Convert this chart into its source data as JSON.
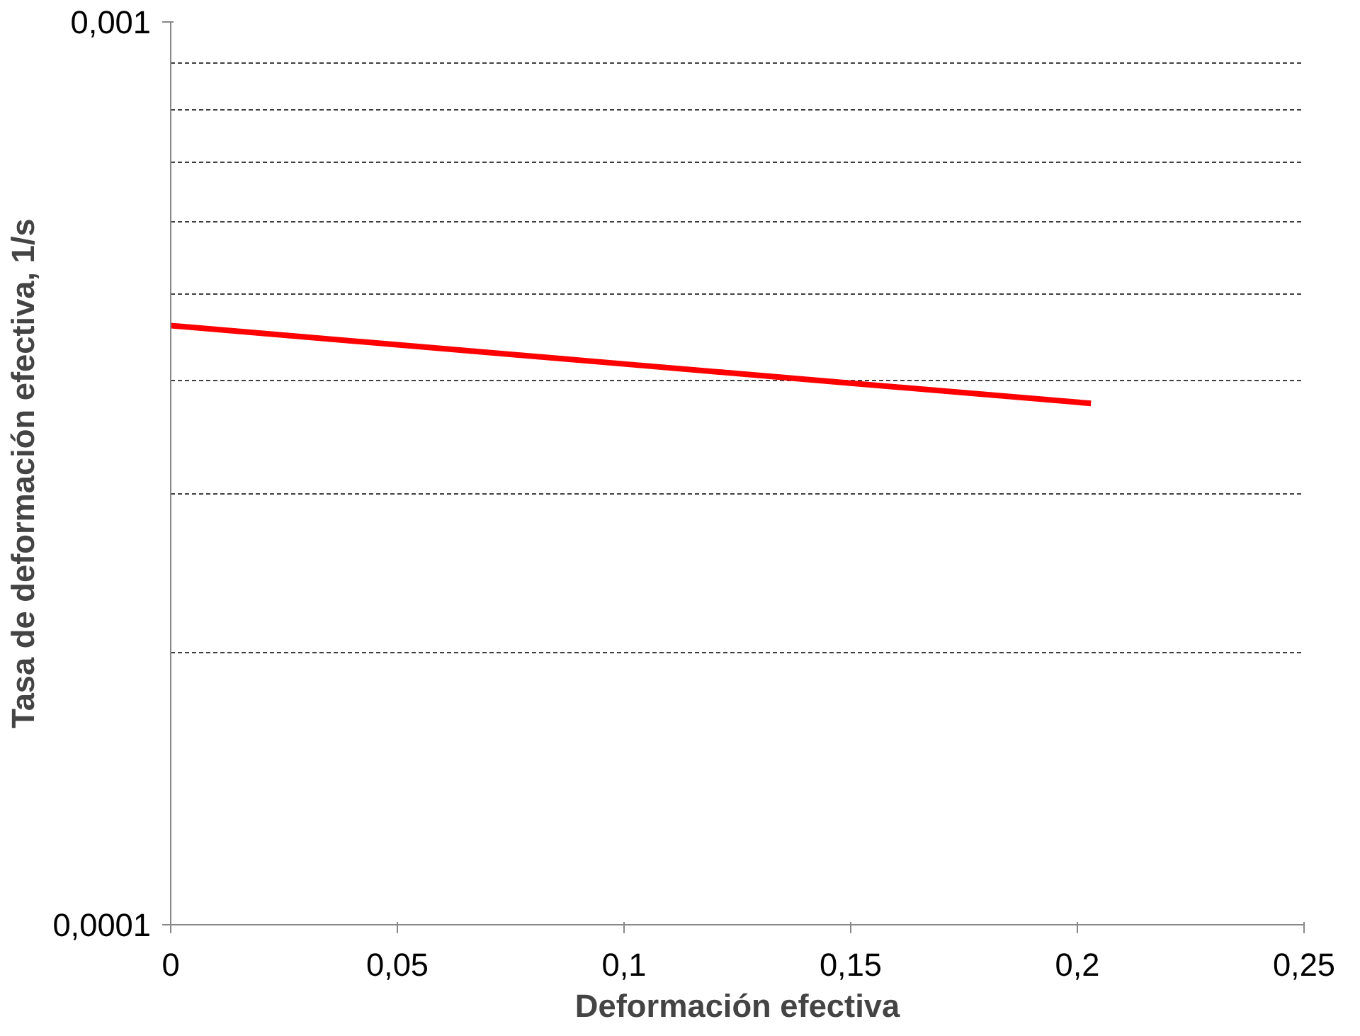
{
  "chart_data": {
    "type": "line",
    "xlabel": "Deformación efectiva",
    "ylabel": "Tasa de deformación efectiva, 1/s",
    "log": "y",
    "grid": "y",
    "line_style": "solid",
    "marker": "none",
    "xlim": [
      0,
      0.25
    ],
    "xticks": [
      {
        "value": 0,
        "label": "0"
      },
      {
        "value": 0.05,
        "label": "0,05"
      },
      {
        "value": 0.1,
        "label": "0,1"
      },
      {
        "value": 0.15,
        "label": "0,15"
      },
      {
        "value": 0.2,
        "label": "0,2"
      },
      {
        "value": 0.25,
        "label": "0,25"
      }
    ],
    "ylim": [
      0.0001,
      0.001
    ],
    "yticks": [
      {
        "value": 0.0001,
        "label": "0,0001"
      },
      {
        "value": 0.0002,
        "label": null
      },
      {
        "value": 0.0003,
        "label": null
      },
      {
        "value": 0.0004,
        "label": null
      },
      {
        "value": 0.0005,
        "label": null
      },
      {
        "value": 0.0006,
        "label": null
      },
      {
        "value": 0.0007,
        "label": null
      },
      {
        "value": 0.0008,
        "label": null
      },
      {
        "value": 0.0009,
        "label": null
      },
      {
        "value": 0.001,
        "label": "0,001"
      }
    ],
    "x": [
      0,
      0.05,
      0.1,
      0.15,
      0.203
    ],
    "series": [
      {
        "color": "#ff0000",
        "values": [
          0.000461,
          0.000439,
          0.000418,
          0.000398,
          0.000378
        ]
      }
    ]
  }
}
